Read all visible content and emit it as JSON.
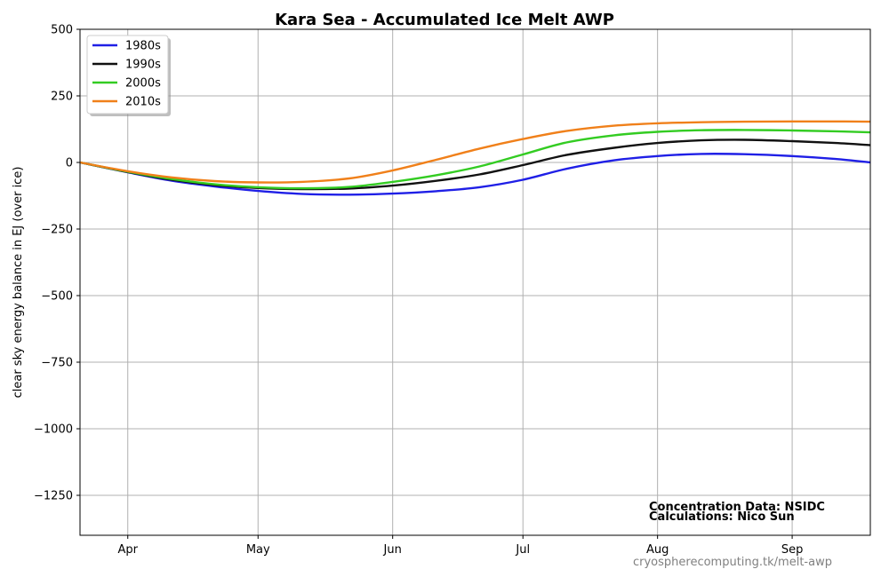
{
  "chart_data": {
    "type": "line",
    "title": "Kara Sea - Accumulated Ice Melt AWP",
    "ylabel": "clear sky energy balance in  EJ (over ice)",
    "xlabel": "",
    "x_unit": "day of year",
    "xlim": [
      80,
      262
    ],
    "ylim": [
      -1400,
      500
    ],
    "x_ticks": [
      {
        "label": "Apr",
        "day": 91
      },
      {
        "label": "May",
        "day": 121
      },
      {
        "label": "Jun",
        "day": 152
      },
      {
        "label": "Jul",
        "day": 182
      },
      {
        "label": "Aug",
        "day": 213
      },
      {
        "label": "Sep",
        "day": 244
      }
    ],
    "y_ticks": [
      500,
      250,
      0,
      -250,
      -500,
      -750,
      -1000,
      -1250
    ],
    "y_tick_labels": [
      "500",
      "250",
      "0",
      "−250",
      "−500",
      "−750",
      "−1000",
      "−1250"
    ],
    "grid": true,
    "legend_position": "top-left",
    "series": [
      {
        "name": "1980s",
        "color": "#1f1fe6",
        "x": [
          80,
          91,
          101,
          111,
          121,
          131,
          142,
          152,
          162,
          172,
          182,
          192,
          203,
          213,
          223,
          233,
          244,
          254,
          262
        ],
        "y": [
          0,
          -37,
          -68,
          -90,
          -107,
          -118,
          -121,
          -117,
          -108,
          -93,
          -65,
          -24,
          8,
          24,
          32,
          31,
          24,
          13,
          0
        ]
      },
      {
        "name": "1990s",
        "color": "#111111",
        "x": [
          80,
          91,
          101,
          111,
          121,
          131,
          142,
          152,
          162,
          172,
          182,
          192,
          203,
          213,
          223,
          233,
          244,
          254,
          262
        ],
        "y": [
          0,
          -36,
          -65,
          -85,
          -96,
          -100,
          -98,
          -87,
          -69,
          -45,
          -10,
          28,
          55,
          73,
          83,
          85,
          80,
          73,
          65
        ]
      },
      {
        "name": "2000s",
        "color": "#33cc22",
        "x": [
          80,
          91,
          101,
          111,
          121,
          131,
          142,
          152,
          162,
          172,
          182,
          192,
          203,
          213,
          223,
          233,
          244,
          254,
          262
        ],
        "y": [
          0,
          -35,
          -62,
          -82,
          -93,
          -97,
          -92,
          -73,
          -48,
          -15,
          30,
          75,
          102,
          115,
          121,
          122,
          120,
          117,
          113
        ]
      },
      {
        "name": "2010s",
        "color": "#f0801a",
        "x": [
          80,
          91,
          101,
          111,
          121,
          131,
          142,
          152,
          162,
          172,
          182,
          192,
          203,
          213,
          223,
          233,
          244,
          254,
          262
        ],
        "y": [
          0,
          -33,
          -56,
          -70,
          -75,
          -73,
          -60,
          -30,
          10,
          52,
          88,
          118,
          138,
          147,
          151,
          153,
          154,
          154,
          153
        ]
      }
    ],
    "annotations": [
      "Concentration Data: NSIDC",
      "Calculations: Nico Sun"
    ]
  },
  "source_url": "cryospherecomputing.tk/melt-awp"
}
